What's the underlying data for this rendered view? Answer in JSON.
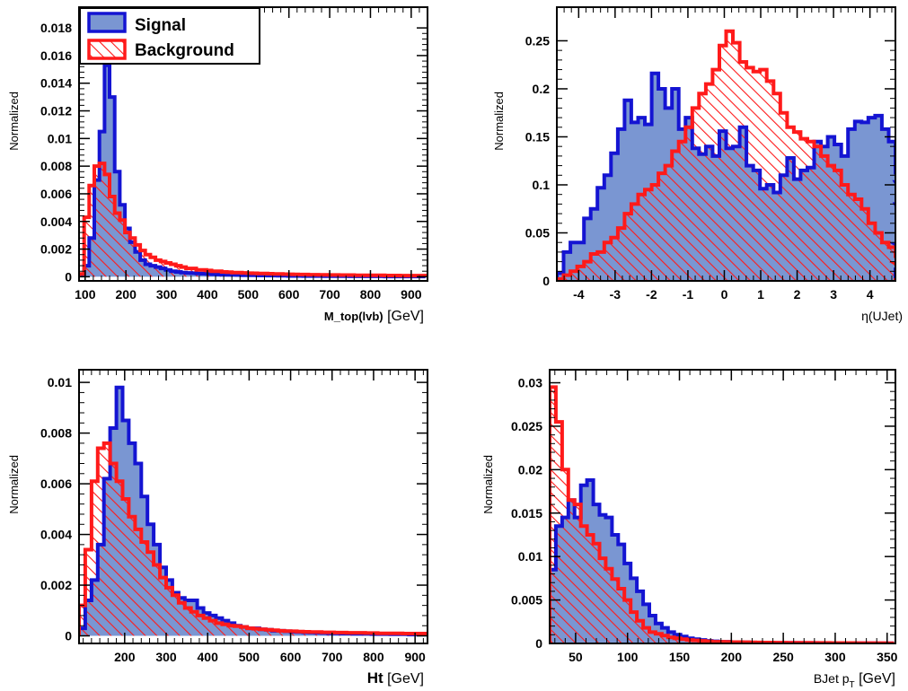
{
  "legend": {
    "signal": "Signal",
    "background": "Background"
  },
  "colors": {
    "signal_line": "#1414d2",
    "signal_fill": "#7a96d2",
    "background_line": "#ff1a1a",
    "hatch": "#ff1a1a"
  },
  "chart_data": [
    {
      "type": "histogram",
      "ylabel": "Normalized",
      "xlabel_main": "M_top(lvb)",
      "xlabel_unit": "[GeV]",
      "xlim": [
        85,
        940
      ],
      "ylim": [
        -0.0003,
        0.0195
      ],
      "xticks": [
        100,
        200,
        300,
        400,
        500,
        600,
        700,
        800,
        900
      ],
      "yticks": [
        0,
        0.002,
        0.004,
        0.006,
        0.008,
        0.01,
        0.012,
        0.014,
        0.016,
        0.018
      ],
      "ytick_labels": [
        "0",
        "0.002",
        "0.004",
        "0.006",
        "0.008",
        "0.01",
        "0.012",
        "0.014",
        "0.016",
        "0.018"
      ],
      "legend": "top-left",
      "bin_edges_start": 85,
      "bin_width": 12.5,
      "series": [
        {
          "name": "Signal",
          "values": [
            0.0001,
            0.0008,
            0.0028,
            0.007,
            0.0105,
            0.0153,
            0.013,
            0.0076,
            0.0052,
            0.0035,
            0.0025,
            0.0018,
            0.0012,
            0.0009,
            0.0008,
            0.0007,
            0.0006,
            0.0005,
            0.0004,
            0.00035,
            0.0003,
            0.00028,
            0.00026,
            0.00024,
            0.00022,
            0.0002,
            0.00018,
            0.00016,
            0.00015,
            0.00014,
            0.00013,
            0.00012,
            0.00011,
            0.0001,
            0.0001,
            9e-05,
            9e-05,
            8e-05,
            8e-05,
            7e-05,
            7e-05,
            6e-05,
            6e-05,
            6e-05,
            5e-05,
            5e-05,
            5e-05,
            5e-05,
            4e-05,
            4e-05,
            4e-05,
            4e-05,
            4e-05,
            3e-05,
            3e-05,
            3e-05,
            3e-05,
            3e-05,
            3e-05,
            3e-05,
            2e-05,
            2e-05,
            2e-05,
            2e-05,
            2e-05,
            2e-05,
            2e-05,
            2e-05
          ]
        },
        {
          "name": "Background",
          "values": [
            0.0002,
            0.0043,
            0.0066,
            0.008,
            0.0082,
            0.0074,
            0.0058,
            0.0046,
            0.0041,
            0.0032,
            0.0028,
            0.0023,
            0.0019,
            0.0016,
            0.0014,
            0.0012,
            0.0011,
            0.001,
            0.0009,
            0.0008,
            0.0007,
            0.0006,
            0.0006,
            0.0005,
            0.0005,
            0.00045,
            0.0004,
            0.0004,
            0.00035,
            0.00033,
            0.0003,
            0.0003,
            0.00028,
            0.00026,
            0.00025,
            0.00024,
            0.00023,
            0.00022,
            0.0002,
            0.0002,
            0.00019,
            0.00018,
            0.00017,
            0.00016,
            0.00016,
            0.00015,
            0.00015,
            0.00014,
            0.00014,
            0.00013,
            0.00013,
            0.00012,
            0.00012,
            0.00012,
            0.00011,
            0.00011,
            0.0001,
            0.0001,
            0.0001,
            0.0001,
            9e-05,
            9e-05,
            9e-05,
            8e-05,
            8e-05,
            8e-05,
            8e-05,
            8e-05
          ]
        }
      ]
    },
    {
      "type": "histogram",
      "ylabel": "Normalized",
      "xlabel_main": "η(UJet)",
      "xlabel_unit": "",
      "xlim": [
        -4.6,
        4.7
      ],
      "ylim": [
        0,
        0.285
      ],
      "xticks": [
        -4,
        -3,
        -2,
        -1,
        0,
        1,
        2,
        3,
        4
      ],
      "yticks": [
        0,
        0.05,
        0.1,
        0.15,
        0.2,
        0.25
      ],
      "ytick_labels": [
        "0",
        "0.05",
        "0.1",
        "0.15",
        "0.2",
        "0.25"
      ],
      "bin_edges_start": -4.6,
      "bin_width": 0.186,
      "series": [
        {
          "name": "Signal",
          "values": [
            0.008,
            0.03,
            0.04,
            0.04,
            0.065,
            0.075,
            0.097,
            0.11,
            0.133,
            0.158,
            0.188,
            0.165,
            0.17,
            0.163,
            0.216,
            0.2,
            0.18,
            0.2,
            0.158,
            0.17,
            0.138,
            0.132,
            0.14,
            0.13,
            0.156,
            0.138,
            0.14,
            0.16,
            0.12,
            0.115,
            0.096,
            0.1,
            0.092,
            0.11,
            0.128,
            0.106,
            0.115,
            0.118,
            0.145,
            0.14,
            0.15,
            0.142,
            0.13,
            0.158,
            0.166,
            0.165,
            0.17,
            0.172,
            0.158,
            0.145,
            0.112,
            0.103,
            0.08,
            0.038,
            0.02,
            0.012
          ]
        },
        {
          "name": "Background",
          "values": [
            0.002,
            0.006,
            0.01,
            0.015,
            0.02,
            0.028,
            0.03,
            0.04,
            0.045,
            0.055,
            0.07,
            0.08,
            0.09,
            0.095,
            0.1,
            0.112,
            0.12,
            0.135,
            0.145,
            0.16,
            0.18,
            0.195,
            0.205,
            0.22,
            0.245,
            0.26,
            0.248,
            0.228,
            0.222,
            0.218,
            0.22,
            0.208,
            0.195,
            0.175,
            0.16,
            0.155,
            0.148,
            0.145,
            0.14,
            0.13,
            0.12,
            0.115,
            0.1,
            0.09,
            0.085,
            0.075,
            0.06,
            0.05,
            0.04,
            0.035,
            0.025,
            0.018,
            0.01,
            0.006,
            0.003,
            0.001
          ]
        }
      ]
    },
    {
      "type": "histogram",
      "ylabel": "Normalized",
      "xlabel_main": "Ht",
      "xlabel_unit": "[GeV]",
      "xlim": [
        90,
        930
      ],
      "ylim": [
        -0.0003,
        0.0105
      ],
      "xticks": [
        200,
        300,
        400,
        500,
        600,
        700,
        800,
        900
      ],
      "yticks": [
        0,
        0.002,
        0.004,
        0.006,
        0.008,
        0.01
      ],
      "ytick_labels": [
        "0",
        "0.002",
        "0.004",
        "0.006",
        "0.008",
        "0.01"
      ],
      "bin_edges_start": 90,
      "bin_width": 15,
      "series": [
        {
          "name": "Signal",
          "values": [
            0.0003,
            0.0014,
            0.0022,
            0.0036,
            0.0062,
            0.0082,
            0.0098,
            0.0085,
            0.0076,
            0.0068,
            0.0055,
            0.0044,
            0.0036,
            0.0027,
            0.0022,
            0.0017,
            0.0015,
            0.0014,
            0.0014,
            0.0011,
            0.0009,
            0.0008,
            0.0007,
            0.0006,
            0.0005,
            0.0004,
            0.00035,
            0.0003,
            0.0003,
            0.00026,
            0.00024,
            0.0002,
            0.0002,
            0.00018,
            0.00016,
            0.00015,
            0.00014,
            0.00013,
            0.00012,
            0.00011,
            0.0001,
            0.0001,
            9e-05,
            9e-05,
            8e-05,
            8e-05,
            8e-05,
            7e-05,
            7e-05,
            7e-05,
            6e-05,
            6e-05,
            6e-05,
            5e-05,
            5e-05,
            5e-05
          ]
        },
        {
          "name": "Background",
          "values": [
            0.0012,
            0.0034,
            0.0061,
            0.0074,
            0.0076,
            0.0068,
            0.0061,
            0.0054,
            0.0047,
            0.0042,
            0.0037,
            0.0033,
            0.0028,
            0.0023,
            0.0019,
            0.0016,
            0.0013,
            0.0011,
            0.00095,
            0.0008,
            0.0007,
            0.0006,
            0.0005,
            0.00045,
            0.0004,
            0.00038,
            0.00035,
            0.0003,
            0.00028,
            0.00026,
            0.00024,
            0.00022,
            0.0002,
            0.00019,
            0.00018,
            0.00017,
            0.00016,
            0.00015,
            0.00015,
            0.00014,
            0.00014,
            0.00013,
            0.00013,
            0.00012,
            0.00012,
            0.00012,
            0.00011,
            0.00011,
            0.0001,
            0.0001,
            0.0001,
            0.0001,
            9e-05,
            9e-05,
            9e-05,
            9e-05
          ]
        }
      ]
    },
    {
      "type": "histogram",
      "ylabel": "Normalized",
      "xlabel_main": "BJet p",
      "xlabel_sub": "T",
      "xlabel_unit": "[GeV]",
      "xlim": [
        25,
        358
      ],
      "ylim": [
        0,
        0.0315
      ],
      "xticks": [
        50,
        100,
        150,
        200,
        250,
        300,
        350
      ],
      "yticks": [
        0,
        0.005,
        0.01,
        0.015,
        0.02,
        0.025,
        0.03
      ],
      "ytick_labels": [
        "0",
        "0.005",
        "0.01",
        "0.015",
        "0.02",
        "0.025",
        "0.03"
      ],
      "bin_edges_start": 25,
      "bin_width": 6,
      "series": [
        {
          "name": "Signal",
          "values": [
            0.0085,
            0.0135,
            0.0145,
            0.0165,
            0.0145,
            0.0182,
            0.0188,
            0.016,
            0.0148,
            0.0145,
            0.0125,
            0.0114,
            0.0092,
            0.0075,
            0.006,
            0.0045,
            0.0032,
            0.0023,
            0.0018,
            0.0013,
            0.001,
            0.0008,
            0.0006,
            0.0005,
            0.0004,
            0.0003,
            0.00025,
            0.0002,
            0.0002,
            0.00015,
            0.00015,
            0.00012,
            0.0001,
            0.0001,
            0.0001,
            8e-05,
            8e-05,
            8e-05,
            7e-05,
            7e-05,
            6e-05,
            6e-05,
            6e-05,
            5e-05,
            5e-05,
            5e-05,
            5e-05,
            4e-05,
            4e-05,
            4e-05,
            4e-05,
            4e-05,
            3e-05,
            3e-05,
            3e-05
          ]
        },
        {
          "name": "Background",
          "values": [
            0.0295,
            0.0255,
            0.02,
            0.0165,
            0.016,
            0.0135,
            0.0125,
            0.0115,
            0.0098,
            0.0086,
            0.0074,
            0.0063,
            0.005,
            0.0036,
            0.0026,
            0.0018,
            0.0013,
            0.0011,
            0.0009,
            0.0007,
            0.0006,
            0.0005,
            0.0004,
            0.00035,
            0.0003,
            0.00025,
            0.0002,
            0.0002,
            0.00018,
            0.00016,
            0.00015,
            0.00014,
            0.00012,
            0.00011,
            0.0001,
            0.0001,
            9e-05,
            9e-05,
            8e-05,
            8e-05,
            7e-05,
            7e-05,
            6e-05,
            6e-05,
            6e-05,
            5e-05,
            5e-05,
            5e-05,
            5e-05,
            4e-05,
            4e-05,
            4e-05,
            4e-05,
            4e-05,
            3e-05
          ]
        }
      ]
    }
  ]
}
